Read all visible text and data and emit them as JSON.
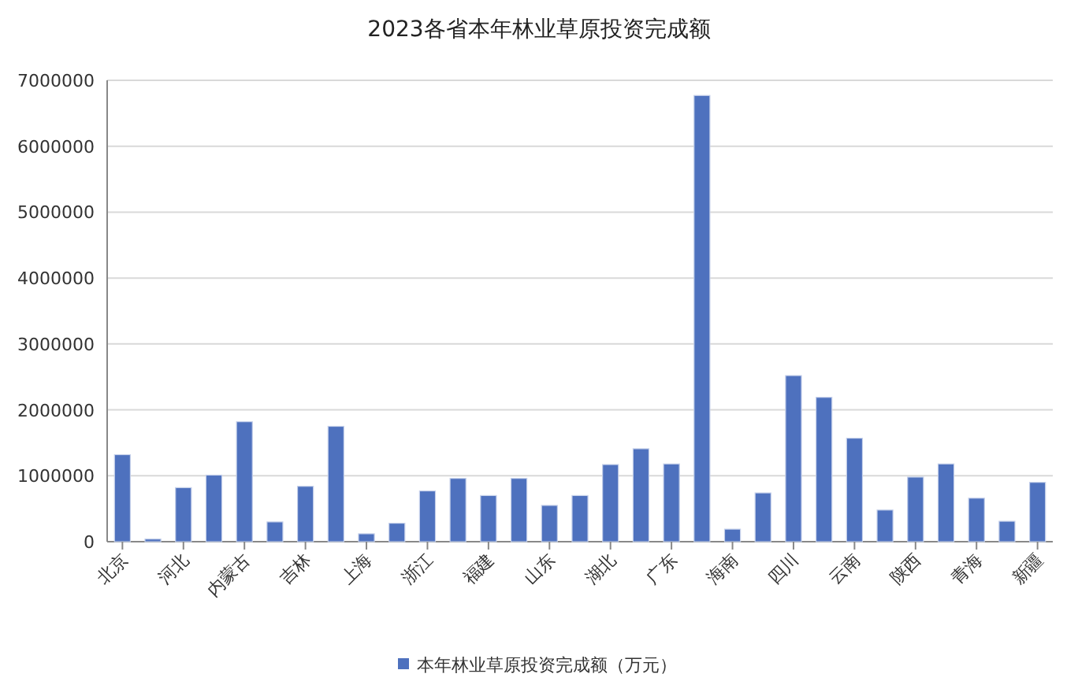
{
  "chart_data": {
    "type": "bar",
    "title": "2023各省本年林业草原投资完成额",
    "categories": [
      "北京",
      null,
      "河北",
      null,
      "内蒙古",
      null,
      "吉林",
      null,
      "上海",
      null,
      "浙江",
      null,
      "福建",
      null,
      "山东",
      null,
      "湖北",
      null,
      "广东",
      null,
      "海南",
      null,
      "四川",
      null,
      "云南",
      null,
      "陕西",
      null,
      "青海",
      null,
      "新疆"
    ],
    "series": [
      {
        "name": "本年林业草原投资完成额（万元）",
        "color": "#4e71be",
        "values": [
          1320000,
          40000,
          820000,
          1010000,
          1820000,
          300000,
          840000,
          1750000,
          120000,
          280000,
          770000,
          960000,
          700000,
          960000,
          550000,
          700000,
          1170000,
          1410000,
          1180000,
          6770000,
          190000,
          740000,
          2520000,
          2190000,
          1570000,
          480000,
          980000,
          1180000,
          660000,
          310000,
          900000
        ]
      }
    ],
    "ylim": [
      0,
      7000000
    ],
    "yticks": [
      0,
      1000000,
      2000000,
      3000000,
      4000000,
      5000000,
      6000000,
      7000000
    ],
    "grid": "y",
    "legend": "bottom"
  }
}
